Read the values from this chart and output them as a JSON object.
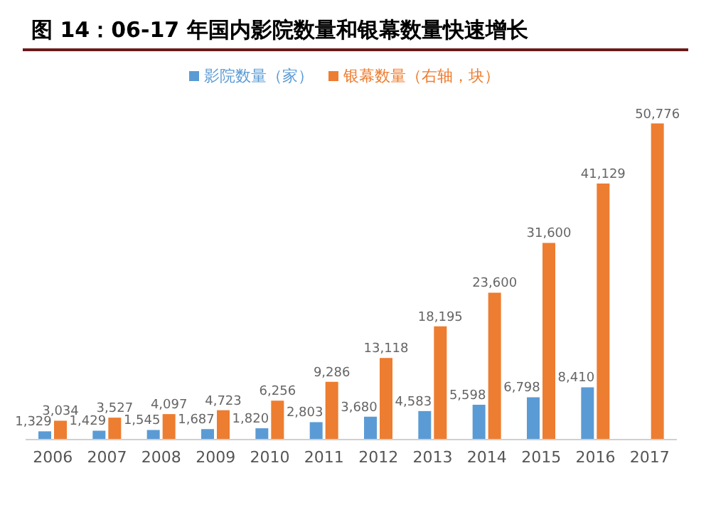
{
  "chart_data": {
    "type": "bar",
    "title": "图 14：06-17 年国内影院数量和银幕数量快速增长",
    "categories": [
      "2006",
      "2007",
      "2008",
      "2009",
      "2010",
      "2011",
      "2012",
      "2013",
      "2014",
      "2015",
      "2016",
      "2017"
    ],
    "series": [
      {
        "name": "影院数量（家）",
        "color": "#5b9bd5",
        "values": [
          1329,
          1429,
          1545,
          1687,
          1820,
          2803,
          3680,
          4583,
          5598,
          6798,
          8410,
          null
        ],
        "value_labels": [
          "1,329",
          "1,429",
          "1,545",
          "1,687",
          "1,820",
          "2,803",
          "3,680",
          "4,583",
          "5,598",
          "6,798",
          "8,410",
          null
        ]
      },
      {
        "name": "银幕数量（右轴，块）",
        "color": "#ed7d31",
        "values": [
          3034,
          3527,
          4097,
          4723,
          6256,
          9286,
          13118,
          18195,
          23600,
          31600,
          41129,
          50776
        ],
        "value_labels": [
          "3,034",
          "3,527",
          "4,097",
          "4,723",
          "6,256",
          "9,286",
          "13,118",
          "18,195",
          "23,600",
          "31,600",
          "41,129",
          "50,776"
        ]
      }
    ],
    "legend": "top"
  }
}
